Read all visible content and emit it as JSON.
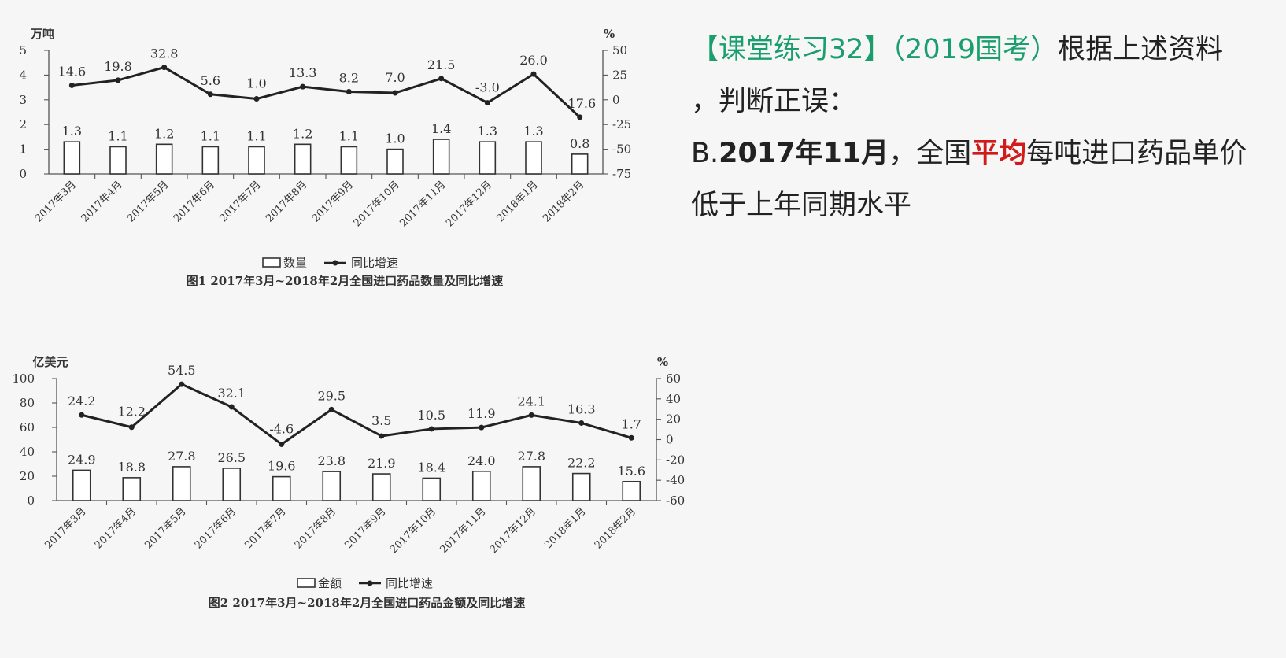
{
  "question": {
    "tag": "【课堂练习32】",
    "source": "（2019国考）",
    "line1_rest": "根据上述资料",
    "line2": "，判断正误：",
    "option_prefix": "B.",
    "option_date": "2017年11月",
    "option_comma": "，全国",
    "option_highlight": "平均",
    "option_rest": "每吨进口药品单价",
    "line4": "低于上年同期水平"
  },
  "colors": {
    "green": "#1a9e6e",
    "red": "#d11b1b"
  },
  "chart_data": [
    {
      "type": "bar",
      "title": "图1  2017年3月~2018年2月全国进口药品数量及同比增速",
      "left_unit": "万吨",
      "right_unit": "%",
      "categories": [
        "2017年3月",
        "2017年4月",
        "2017年5月",
        "2017年6月",
        "2017年7月",
        "2017年8月",
        "2017年9月",
        "2017年10月",
        "2017年11月",
        "2017年12月",
        "2018年1月",
        "2018年2月"
      ],
      "ylim": [
        0,
        5
      ],
      "yticks": [
        0,
        1,
        2,
        3,
        4,
        5
      ],
      "y2lim": [
        -75,
        50
      ],
      "y2ticks": [
        -75,
        -50,
        -25,
        0,
        25,
        50
      ],
      "series": [
        {
          "name": "数量",
          "type": "bar",
          "axis": "left",
          "values": [
            1.3,
            1.1,
            1.2,
            1.1,
            1.1,
            1.2,
            1.1,
            1.0,
            1.4,
            1.3,
            1.3,
            0.8
          ]
        },
        {
          "name": "同比增速",
          "type": "line",
          "axis": "right",
          "values": [
            14.6,
            19.8,
            32.8,
            5.6,
            1.0,
            13.3,
            8.2,
            7.0,
            21.5,
            -3.0,
            26.0,
            -17.6
          ]
        }
      ],
      "grid": false,
      "legend": "bottom"
    },
    {
      "type": "bar",
      "title": "图2  2017年3月~2018年2月全国进口药品金额及同比增速",
      "left_unit": "亿美元",
      "right_unit": "%",
      "categories": [
        "2017年3月",
        "2017年4月",
        "2017年5月",
        "2017年6月",
        "2017年7月",
        "2017年8月",
        "2017年9月",
        "2017年10月",
        "2017年11月",
        "2017年12月",
        "2018年1月",
        "2018年2月"
      ],
      "ylim": [
        0,
        100
      ],
      "yticks": [
        0,
        20,
        40,
        60,
        80,
        100
      ],
      "y2lim": [
        -60,
        60
      ],
      "y2ticks": [
        -60,
        -40,
        -20,
        0,
        20,
        40,
        60
      ],
      "series": [
        {
          "name": "金额",
          "type": "bar",
          "axis": "left",
          "values": [
            24.9,
            18.8,
            27.8,
            26.5,
            19.6,
            23.8,
            21.9,
            18.4,
            24.0,
            27.8,
            22.2,
            15.6
          ]
        },
        {
          "name": "同比增速",
          "type": "line",
          "axis": "right",
          "values": [
            24.2,
            12.2,
            54.5,
            32.1,
            -4.6,
            29.5,
            3.5,
            10.5,
            11.9,
            24.1,
            16.3,
            1.7
          ]
        }
      ],
      "grid": false,
      "legend": "bottom"
    }
  ]
}
